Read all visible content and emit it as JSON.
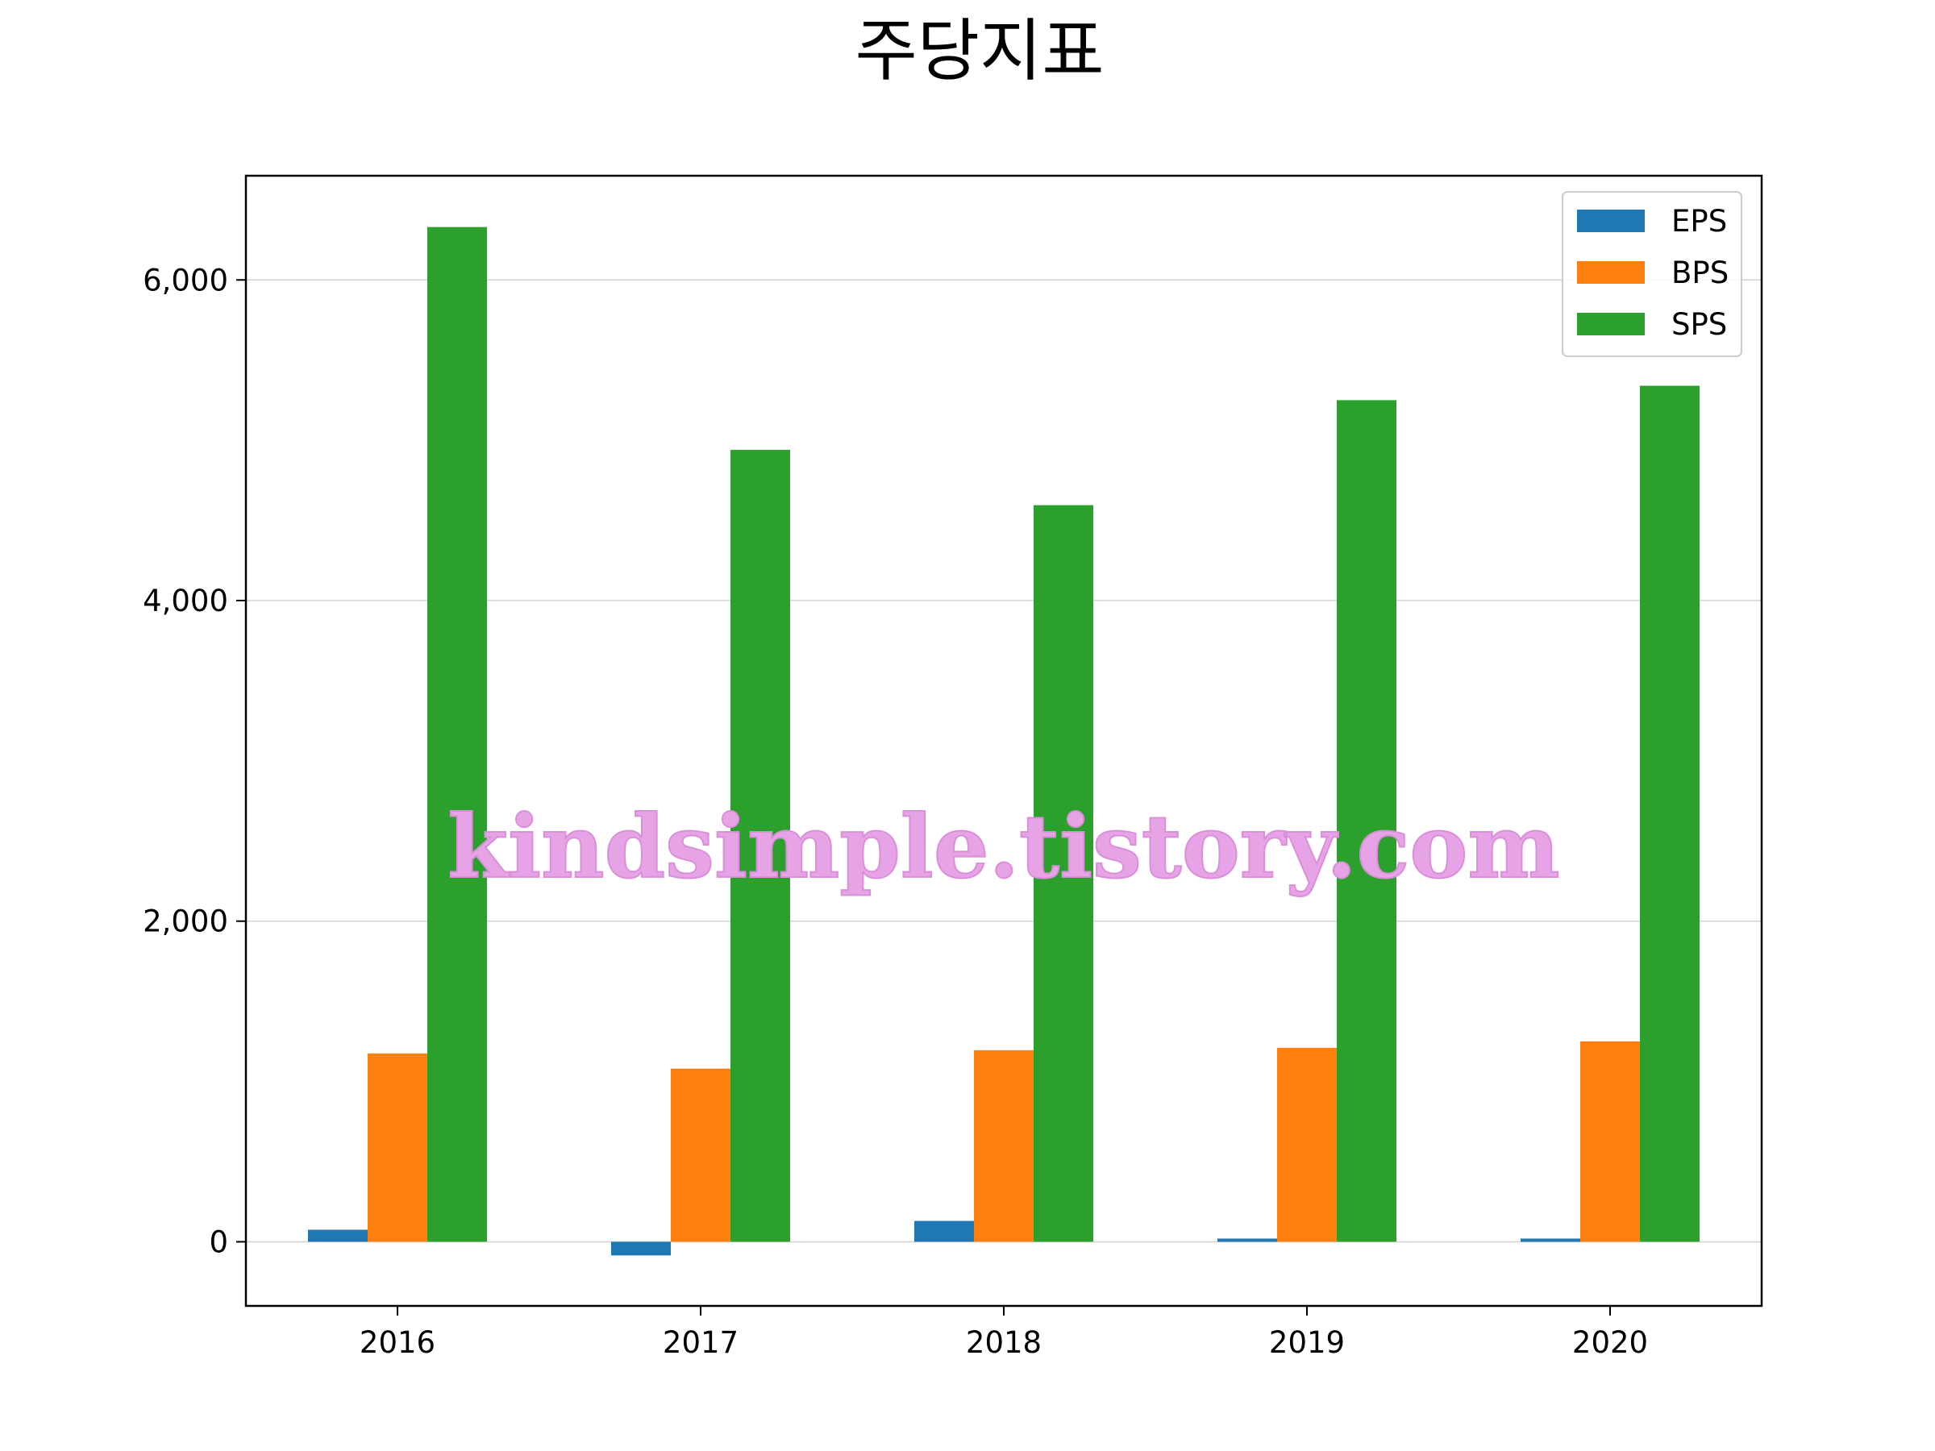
{
  "chart_data": {
    "type": "bar",
    "title": "주당지표",
    "xlabel": "",
    "ylabel": "",
    "categories": [
      "2016",
      "2017",
      "2018",
      "2019",
      "2020"
    ],
    "series": [
      {
        "name": "EPS",
        "color": "#1f77b4",
        "values": [
          75,
          -85,
          130,
          20,
          20
        ]
      },
      {
        "name": "BPS",
        "color": "#ff7f0e",
        "values": [
          1175,
          1080,
          1195,
          1210,
          1250
        ]
      },
      {
        "name": "SPS",
        "color": "#2ca02c",
        "values": [
          6330,
          4940,
          4595,
          5250,
          5340
        ]
      }
    ],
    "ylim": [
      -400,
      6650
    ],
    "yticks": [
      0,
      2000,
      4000,
      6000
    ],
    "ytick_labels": [
      "0",
      "2,000",
      "4,000",
      "6,000"
    ],
    "grid": "horizontal",
    "legend_position": "top-right",
    "watermark": "kindsimple.tistory.com",
    "watermark_color": "#e6a3e6"
  }
}
